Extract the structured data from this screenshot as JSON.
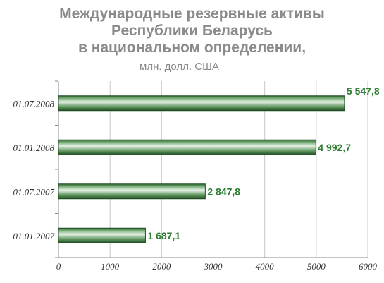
{
  "chart_data": {
    "type": "bar",
    "orientation": "horizontal",
    "title_lines": [
      "Международные резервные активы",
      "Республики Беларусь",
      "в национальном определении,"
    ],
    "subtitle": "млн. долл. США",
    "categories": [
      "01.07.2008",
      "01.01.2008",
      "01.07.2007",
      "01.01.2007"
    ],
    "values": [
      5547.8,
      4992.7,
      2847.8,
      1687.1
    ],
    "value_labels": [
      "5 547,8",
      "4 992,7",
      "2 847,8",
      "1 687,1"
    ],
    "xlim": [
      0,
      6000
    ],
    "xticks": [
      0,
      1000,
      2000,
      3000,
      4000,
      5000,
      6000
    ],
    "grid": true,
    "bar_color": "#2e7d32",
    "label_color": "#2e7d32"
  }
}
